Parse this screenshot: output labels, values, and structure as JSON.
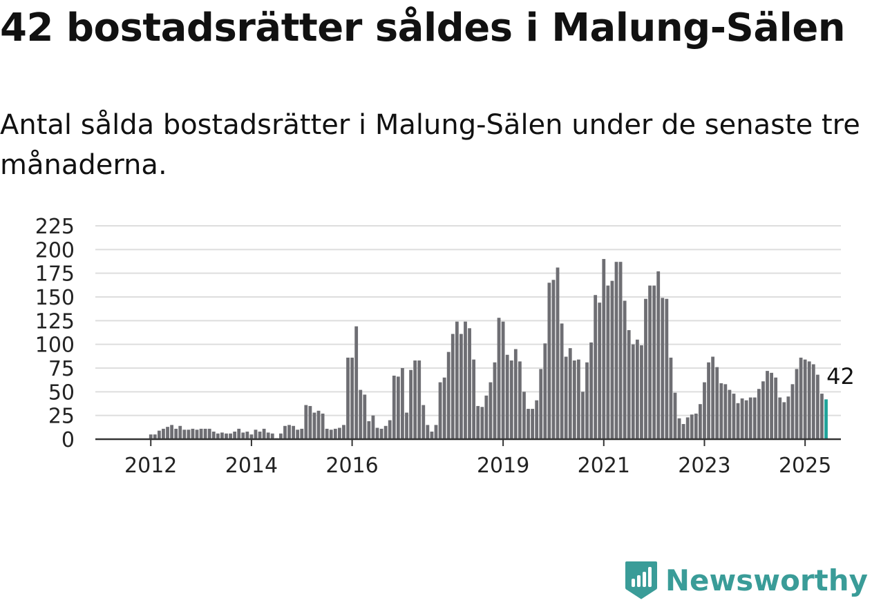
{
  "title": "42 bostadsrätter såldes i Malung-Sälen",
  "subtitle": "Antal sålda bostadsrätter i Malung-Sälen under de senaste tre månaderna.",
  "brand": {
    "name": "Newsworthy",
    "color": "#3a9c98",
    "icon": "newsworthy-logo-icon"
  },
  "colors": {
    "bar": "#6e6e73",
    "highlight": "#1fa39a",
    "grid": "#dddddd",
    "axis": "#333333"
  },
  "chart_data": {
    "type": "bar",
    "x_start": "2011-01",
    "frequency": "monthly",
    "ylim": [
      0,
      225
    ],
    "yticks": [
      0,
      25,
      50,
      75,
      100,
      125,
      150,
      175,
      200,
      225
    ],
    "xticks": [
      {
        "label": "2012",
        "month": "2012-01"
      },
      {
        "label": "2014",
        "month": "2014-01"
      },
      {
        "label": "2016",
        "month": "2016-01"
      },
      {
        "label": "2019",
        "month": "2019-01"
      },
      {
        "label": "2021",
        "month": "2021-01"
      },
      {
        "label": "2023",
        "month": "2023-01"
      },
      {
        "label": "2025",
        "month": "2025-01"
      }
    ],
    "grid": true,
    "legend": "none",
    "highlight": {
      "label": "42",
      "value": 42
    },
    "values": [
      0,
      0,
      0,
      0,
      0,
      0,
      0,
      0,
      0,
      0,
      0,
      0,
      5,
      5,
      9,
      11,
      13,
      15,
      11,
      14,
      10,
      10,
      11,
      10,
      11,
      11,
      11,
      8,
      6,
      7,
      6,
      6,
      8,
      11,
      7,
      8,
      5,
      10,
      8,
      11,
      7,
      6,
      1,
      6,
      14,
      15,
      14,
      10,
      11,
      36,
      35,
      28,
      30,
      27,
      11,
      10,
      11,
      12,
      15,
      86,
      86,
      119,
      52,
      47,
      19,
      25,
      12,
      11,
      14,
      20,
      67,
      66,
      75,
      28,
      73,
      83,
      83,
      36,
      15,
      8,
      15,
      60,
      65,
      92,
      111,
      124,
      111,
      124,
      117,
      84,
      35,
      34,
      46,
      60,
      81,
      128,
      124,
      89,
      83,
      95,
      82,
      50,
      32,
      32,
      41,
      74,
      101,
      165,
      168,
      181,
      122,
      87,
      96,
      83,
      84,
      50,
      81,
      102,
      152,
      144,
      190,
      162,
      167,
      187,
      187,
      146,
      115,
      100,
      105,
      99,
      148,
      162,
      162,
      177,
      149,
      148,
      86,
      49,
      22,
      16,
      23,
      26,
      27,
      37,
      60,
      81,
      87,
      76,
      59,
      58,
      52,
      48,
      38,
      43,
      41,
      44,
      44,
      53,
      61,
      72,
      70,
      65,
      44,
      39,
      45,
      58,
      74,
      86,
      84,
      82,
      79,
      68,
      48,
      42
    ]
  }
}
